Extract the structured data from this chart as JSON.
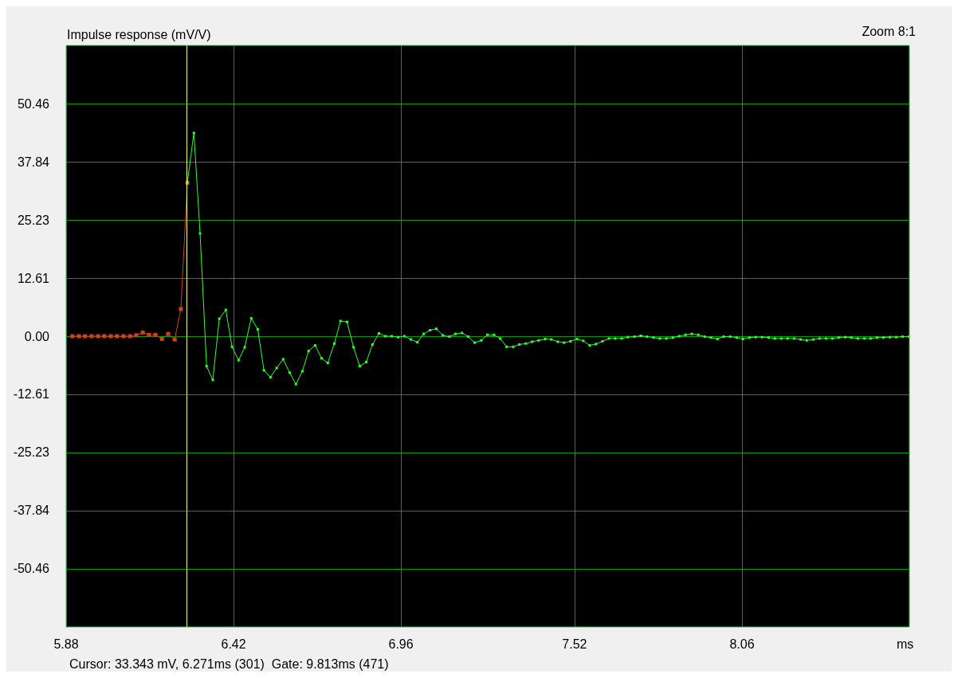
{
  "chart_data": {
    "type": "line",
    "title": "Impulse response (mV/V)",
    "xlabel": "ms",
    "annotations": [
      "Zoom 8:1",
      "Cursor: 33.343 mV, 6.271ms (301)  Gate: 9.813ms (471)"
    ],
    "series": [
      {
        "color": "#d04020",
        "x": [
          5.9,
          5.921,
          5.941,
          5.962,
          5.983,
          6.003,
          6.024,
          6.044,
          6.065,
          6.086,
          6.106,
          6.127,
          6.147,
          6.168,
          6.189,
          6.209,
          6.23,
          6.25,
          6.271
        ],
        "values": [
          0,
          0,
          0,
          0,
          0,
          0,
          0,
          0,
          0,
          0,
          0.2,
          0.8,
          0.3,
          0.3,
          -0.6,
          0.5,
          -0.7,
          5.9,
          33.3
        ]
      },
      {
        "color": "#33ff33",
        "x": [
          6.271,
          6.292,
          6.312,
          6.333,
          6.353,
          6.374,
          6.395,
          6.415,
          6.436,
          6.456,
          6.477,
          6.498,
          6.518,
          6.539,
          6.559,
          6.58,
          6.601,
          6.621,
          6.642,
          6.662,
          6.683,
          6.704,
          6.724,
          6.745,
          6.765,
          6.786,
          6.807,
          6.827,
          6.848,
          6.868,
          6.889,
          6.91,
          6.93,
          6.951,
          6.971,
          6.992,
          7.013,
          7.033,
          7.054,
          7.074,
          7.095,
          7.116,
          7.136,
          7.157,
          7.177,
          7.198,
          7.219,
          7.239,
          7.26,
          7.28,
          7.301,
          7.322,
          7.342,
          7.363,
          7.383,
          7.404,
          7.425,
          7.445,
          7.466,
          7.486,
          7.507,
          7.528,
          7.548,
          7.569,
          7.589,
          7.61,
          7.631,
          7.651,
          7.672,
          7.692,
          7.713,
          7.734,
          7.754,
          7.775,
          7.795,
          7.816,
          7.837,
          7.857,
          7.878,
          7.898,
          7.919,
          7.94,
          7.96,
          7.981,
          8.001,
          8.022,
          8.043,
          8.063,
          8.084,
          8.104,
          8.125,
          8.146,
          8.166,
          8.187,
          8.207,
          8.228,
          8.249,
          8.269,
          8.29,
          8.31,
          8.331,
          8.352,
          8.372,
          8.393,
          8.413,
          8.434,
          8.455,
          8.475,
          8.496,
          8.516,
          8.537,
          8.558,
          8.578,
          8.599
        ],
        "values": [
          33.3,
          44.1,
          22.3,
          -6.5,
          -9.5,
          3.8,
          5.7,
          -2.3,
          -5.2,
          -2.4,
          3.9,
          1.5,
          -7.4,
          -8.9,
          -6.9,
          -5.0,
          -7.9,
          -10.4,
          -7.6,
          -3.2,
          -2.0,
          -4.8,
          -5.8,
          -1.6,
          3.3,
          3.1,
          -2.4,
          -6.5,
          -5.6,
          -1.8,
          0.6,
          0,
          0,
          -0.2,
          0,
          -0.7,
          -1.3,
          0.5,
          1.3,
          1.6,
          0.2,
          -0.1,
          0.5,
          0.7,
          -0.1,
          -1.4,
          -0.9,
          0.3,
          0.3,
          -0.5,
          -2.3,
          -2.3,
          -1.8,
          -1.6,
          -1.2,
          -0.9,
          -0.6,
          -0.7,
          -1.2,
          -1.4,
          -1.1,
          -0.6,
          -1.0,
          -2.0,
          -1.7,
          -1.1,
          -0.5,
          -0.5,
          -0.5,
          -0.2,
          -0.1,
          0.1,
          -0.1,
          -0.3,
          -0.5,
          -0.5,
          -0.3,
          0,
          0.3,
          0.5,
          0.3,
          -0.1,
          -0.3,
          -0.6,
          -0.1,
          -0.1,
          -0.3,
          -0.6,
          -0.3,
          -0.2,
          -0.2,
          -0.3,
          -0.5,
          -0.5,
          -0.5,
          -0.5,
          -0.7,
          -0.9,
          -0.7,
          -0.5,
          -0.5,
          -0.5,
          -0.3,
          -0.2,
          -0.3,
          -0.5,
          -0.5,
          -0.5,
          -0.3,
          -0.3,
          -0.2,
          -0.2,
          -0.1,
          -0.1
        ]
      }
    ],
    "xlim": [
      5.88,
      8.6
    ],
    "xticks": [
      5.88,
      6.42,
      6.96,
      7.52,
      8.06
    ],
    "ylim": [
      -63.1,
      63.1
    ],
    "yticks": [
      -50.46,
      -37.84,
      -25.23,
      -12.61,
      {
        "value": 0,
        "label": "0.00"
      },
      12.61,
      25.23,
      37.84,
      50.46
    ],
    "ref_lines": [
      {
        "axis": "x",
        "value": 6.271,
        "color": "#ffff80"
      }
    ],
    "grid": true,
    "legend": false,
    "marker": "square",
    "line_style": "solid"
  }
}
